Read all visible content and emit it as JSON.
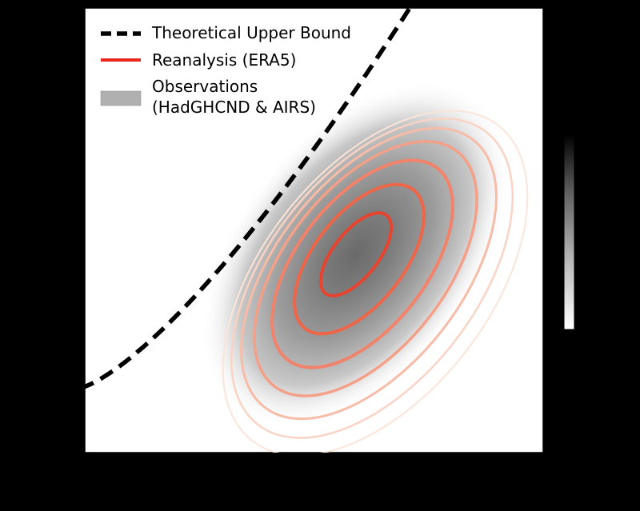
{
  "chart_data": {
    "type": "heatmap",
    "title": "",
    "xlabel": "",
    "ylabel": "",
    "legend": {
      "placement": "top-left",
      "entries": [
        {
          "label": "Theoretical Upper Bound",
          "style": "dashed-line",
          "color": "#000000"
        },
        {
          "label": "Reanalysis (ERA5)",
          "style": "line",
          "color": "#e8281e"
        },
        {
          "label": "Observations",
          "label_line2": "(HadGHCND & AIRS)",
          "style": "patch",
          "color": "#b0b0b0"
        }
      ]
    },
    "series": [
      {
        "name": "Theoretical Upper Bound",
        "kind": "bound-curve",
        "color": "#000000"
      },
      {
        "name": "Reanalysis (ERA5)",
        "kind": "contours",
        "levels": 7,
        "colors": [
          "#e8432e",
          "#ee6548",
          "#f2826a",
          "#f4a088",
          "#f7bca8",
          "#f9d3c4",
          "#fbe4d8"
        ]
      },
      {
        "name": "Observations",
        "kind": "density",
        "colormap": "Greys"
      }
    ],
    "colorbar": {
      "colormap": "Greys",
      "placement": "right",
      "tick_labels": []
    },
    "grid": false
  }
}
